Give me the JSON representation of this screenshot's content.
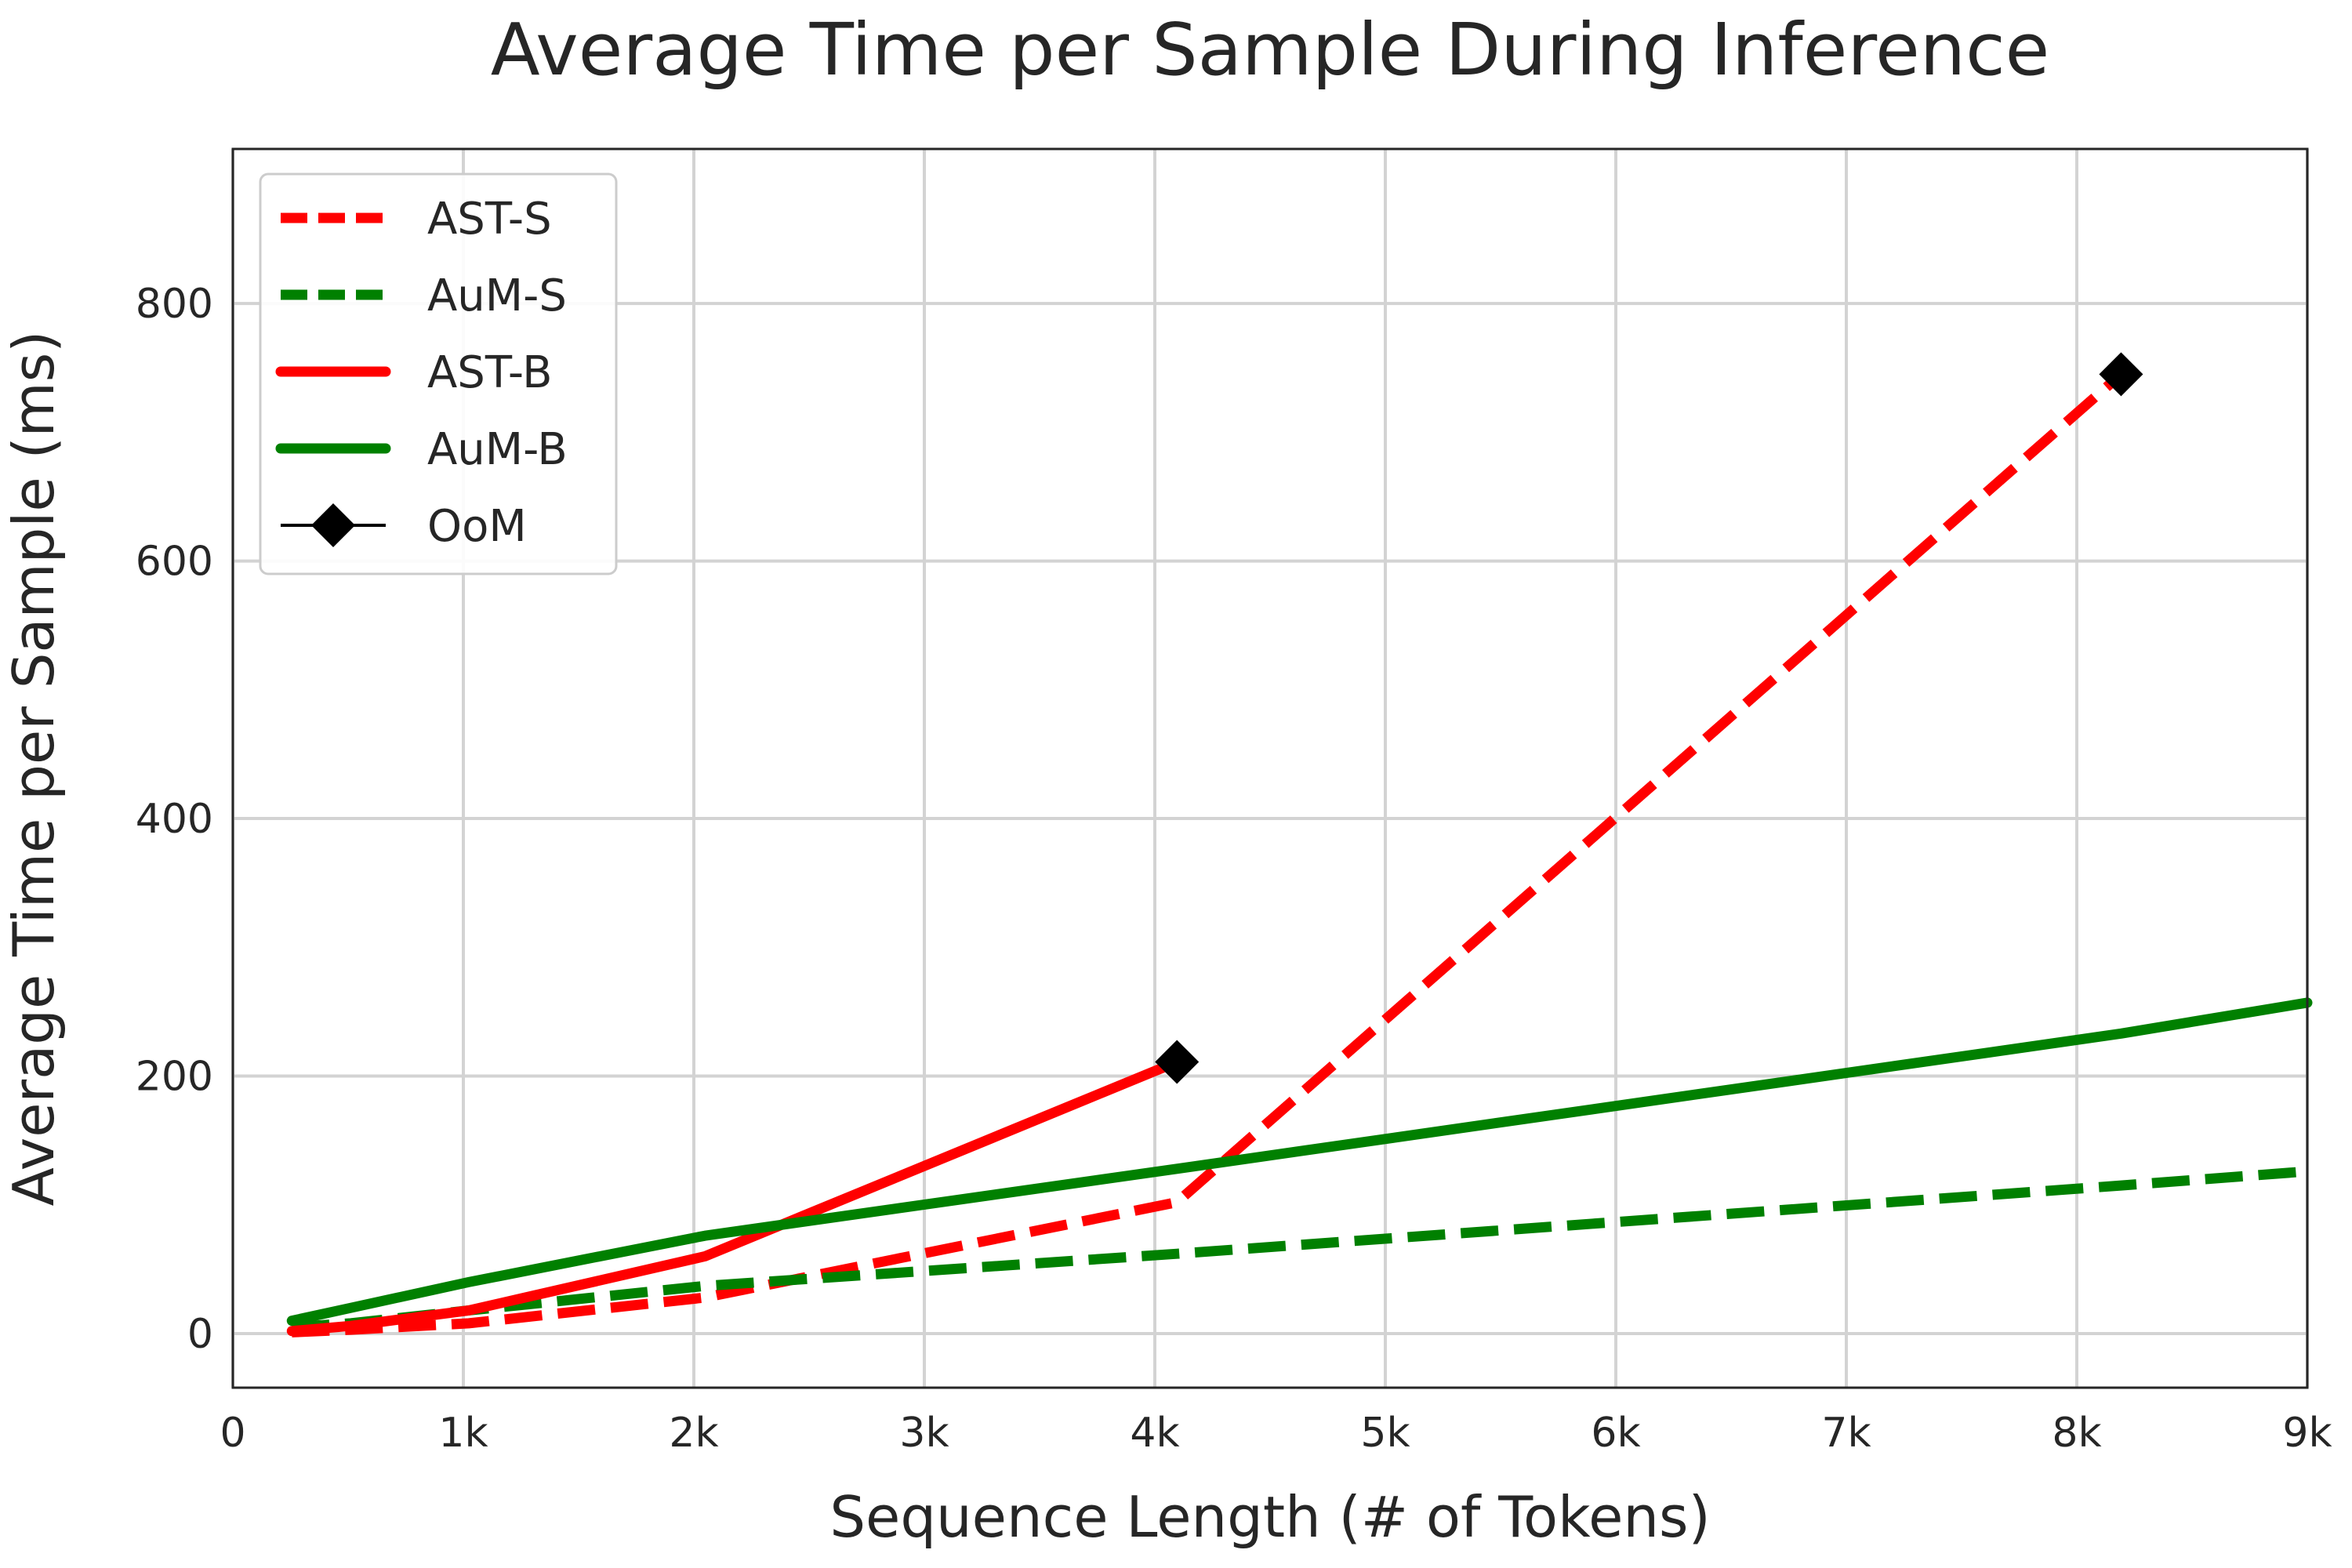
{
  "chart_data": {
    "type": "line",
    "title": "Average Time per Sample During Inference",
    "xlabel": "Sequence Length (# of Tokens)",
    "ylabel": "Average Time per Sample (ms)",
    "xlim": [
      0,
      9000
    ],
    "ylim": [
      -42,
      920
    ],
    "xticks": [
      {
        "value": 0,
        "label": "0"
      },
      {
        "value": 1000,
        "label": "1k"
      },
      {
        "value": 2000,
        "label": "2k"
      },
      {
        "value": 3000,
        "label": "3k"
      },
      {
        "value": 4000,
        "label": "4k"
      },
      {
        "value": 5000,
        "label": "5k"
      },
      {
        "value": 6000,
        "label": "6k"
      },
      {
        "value": 7000,
        "label": "7k"
      },
      {
        "value": 8000,
        "label": "8k"
      },
      {
        "value": 9000,
        "label": "9k"
      }
    ],
    "yticks": [
      {
        "value": 0,
        "label": "0"
      },
      {
        "value": 200,
        "label": "200"
      },
      {
        "value": 400,
        "label": "400"
      },
      {
        "value": 600,
        "label": "600"
      },
      {
        "value": 800,
        "label": "800"
      }
    ],
    "grid": true,
    "legend_position": "top-left",
    "series": [
      {
        "name": "AST-S",
        "color": "#ff0000",
        "style": "dashed",
        "x": [
          256,
          512,
          1024,
          2048,
          4096,
          8192
        ],
        "y": [
          1,
          3,
          8,
          28,
          102,
          745
        ]
      },
      {
        "name": "AuM-S",
        "color": "#008000",
        "style": "dashed",
        "x": [
          256,
          512,
          1024,
          2048,
          4096,
          8192,
          9000
        ],
        "y": [
          5,
          8,
          18,
          37,
          62,
          115,
          126
        ]
      },
      {
        "name": "AST-B",
        "color": "#ff0000",
        "style": "solid",
        "x": [
          256,
          512,
          1024,
          2048,
          4096
        ],
        "y": [
          2,
          6,
          18,
          60,
          211
        ]
      },
      {
        "name": "AuM-B",
        "color": "#008000",
        "style": "solid",
        "x": [
          256,
          512,
          1024,
          2048,
          4096,
          8192,
          9000
        ],
        "y": [
          10,
          20,
          40,
          76,
          128,
          233,
          257
        ]
      }
    ],
    "markers": {
      "name": "OoM",
      "color": "#000000",
      "shape": "diamond",
      "points": [
        {
          "x": 4096,
          "y": 211
        },
        {
          "x": 8192,
          "y": 745
        }
      ]
    }
  }
}
